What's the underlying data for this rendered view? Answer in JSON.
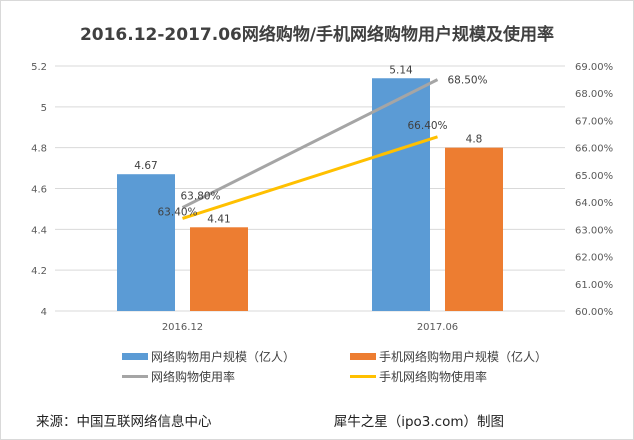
{
  "chart_data": {
    "type": "bar",
    "title": "2016.12-2017.06网络购物/手机网络购物用户规模及使用率",
    "categories": [
      "2016.12",
      "2017.06"
    ],
    "series": [
      {
        "name": "网络购物用户规模（亿人）",
        "kind": "bar",
        "axis": "left",
        "color": "#5b9bd5",
        "values": [
          4.67,
          5.14
        ],
        "labels": [
          "4.67",
          "5.14"
        ]
      },
      {
        "name": "手机网络购物用户规模（亿人）",
        "kind": "bar",
        "axis": "left",
        "color": "#ed7d31",
        "values": [
          4.41,
          4.8
        ],
        "labels": [
          "4.41",
          "4.8"
        ]
      },
      {
        "name": "网络购物使用率",
        "kind": "line",
        "axis": "right",
        "color": "#a5a5a5",
        "values": [
          63.8,
          68.5
        ],
        "labels": [
          "63.80%",
          "68.50%"
        ]
      },
      {
        "name": "手机网络购物使用率",
        "kind": "line",
        "axis": "right",
        "color": "#ffc000",
        "values": [
          63.4,
          66.4
        ],
        "labels": [
          "63.40%",
          "66.40%"
        ]
      }
    ],
    "y_left": {
      "min": 4,
      "max": 5.2,
      "ticks": [
        "4",
        "4.2",
        "4.4",
        "4.6",
        "4.8",
        "5",
        "5.2"
      ]
    },
    "y_right": {
      "min": 60,
      "max": 69,
      "ticks": [
        "60.00%",
        "61.00%",
        "62.00%",
        "63.00%",
        "64.00%",
        "65.00%",
        "66.00%",
        "67.00%",
        "68.00%",
        "69.00%"
      ]
    },
    "grid": true,
    "legend_position": "bottom"
  },
  "footer": {
    "source": "来源：中国互联网络信息中心",
    "credit": "犀牛之星（ipo3.com）制图"
  }
}
